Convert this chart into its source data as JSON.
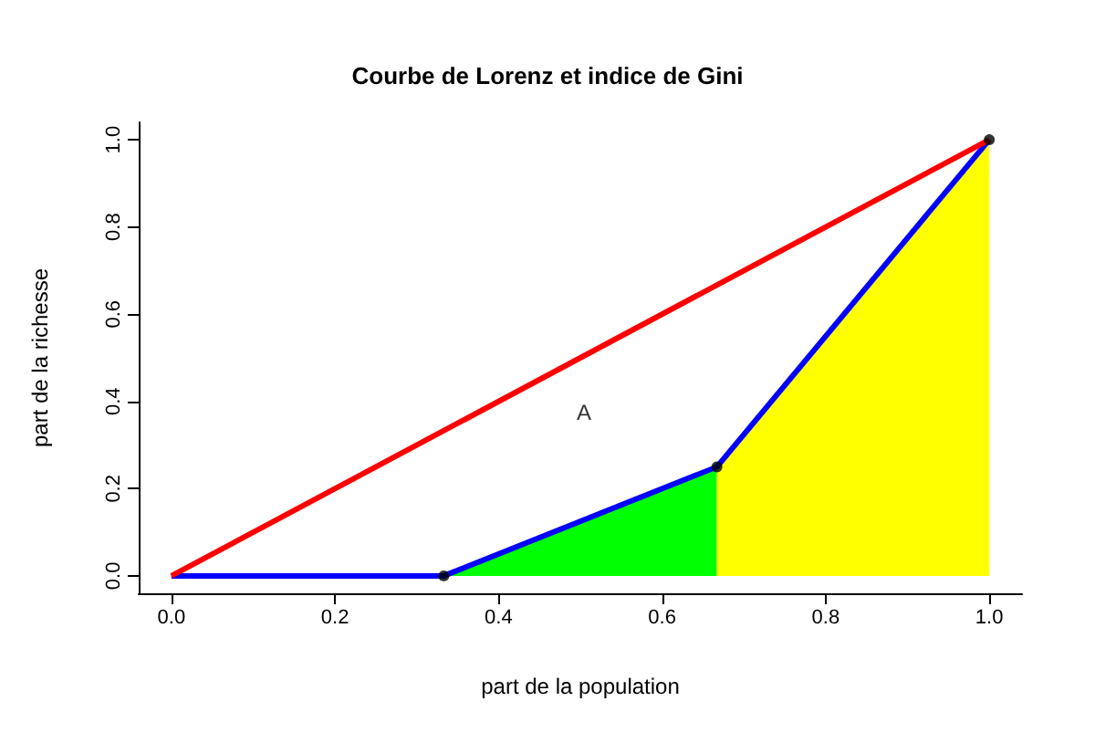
{
  "chart_data": {
    "type": "line",
    "title": "Courbe de Lorenz et indice de Gini",
    "xlabel": "part de la population",
    "ylabel": "part de la richesse",
    "xlim": [
      -0.04,
      1.04
    ],
    "ylim": [
      -0.04,
      1.04
    ],
    "xticks": [
      {
        "value": 0,
        "label": "0.0"
      },
      {
        "value": 0.2,
        "label": "0.2"
      },
      {
        "value": 0.4,
        "label": "0.4"
      },
      {
        "value": 0.6,
        "label": "0.6"
      },
      {
        "value": 0.8,
        "label": "0.8"
      },
      {
        "value": 1,
        "label": "1.0"
      }
    ],
    "yticks": [
      {
        "value": 0,
        "label": "0.0"
      },
      {
        "value": 0.2,
        "label": "0.2"
      },
      {
        "value": 0.4,
        "label": "0.4"
      },
      {
        "value": 0.6,
        "label": "0.6"
      },
      {
        "value": 0.8,
        "label": "0.8"
      },
      {
        "value": 1,
        "label": "1.0"
      }
    ],
    "series": [
      {
        "type": "area",
        "color": "#00ff00",
        "x": [
          0.333,
          0.667
        ],
        "values": [
          0,
          0.25
        ]
      },
      {
        "type": "area",
        "color": "#ffff00",
        "x": [
          0.667,
          1
        ],
        "values": [
          0.25,
          1
        ]
      },
      {
        "color": "#0000ff",
        "x": [
          0,
          0.333,
          0.667,
          1
        ],
        "values": [
          0,
          0,
          0.25,
          1
        ]
      },
      {
        "type": "scatter",
        "color": "#000000",
        "marker": "circle",
        "x": [
          0.333,
          0.667,
          1
        ],
        "values": [
          0,
          0.25,
          1
        ]
      },
      {
        "color": "#ff0000",
        "x": [
          0,
          1
        ],
        "values": [
          0,
          1
        ]
      }
    ],
    "annotations": [
      "A"
    ]
  }
}
